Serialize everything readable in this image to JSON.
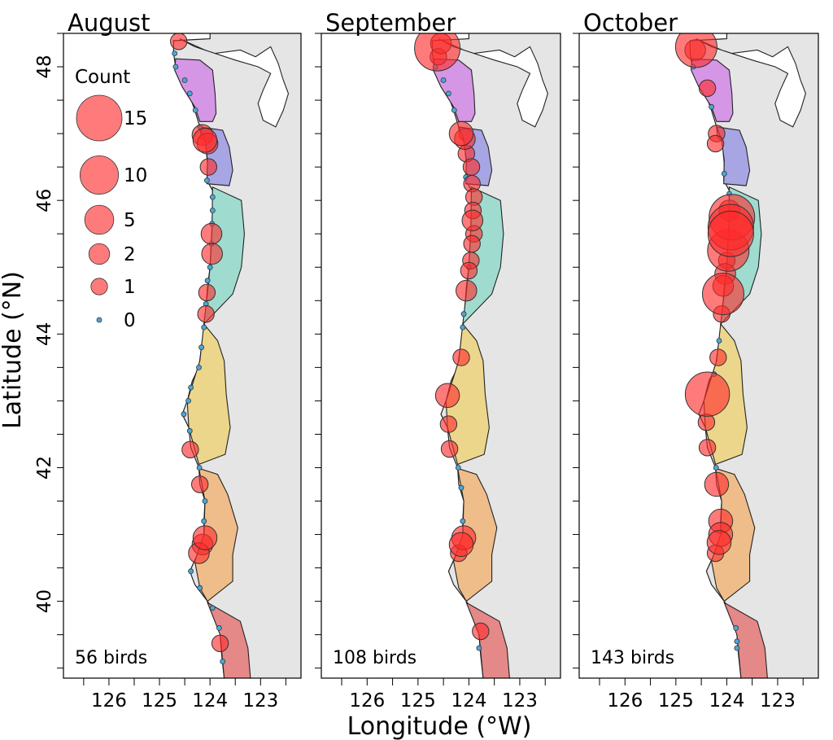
{
  "y_axis_label": "Latitude (°N)",
  "x_axis_label": "Longitude (°W)",
  "y_ticks": [
    "48",
    "46",
    "44",
    "42",
    "40"
  ],
  "x_ticks": [
    "126",
    "125",
    "124",
    "123"
  ],
  "legend": {
    "title": "Count",
    "entries": [
      {
        "label": "15",
        "count": 15
      },
      {
        "label": "10",
        "count": 10
      },
      {
        "label": "5",
        "count": 5
      },
      {
        "label": "2",
        "count": 2
      },
      {
        "label": "1",
        "count": 1
      },
      {
        "label": "0",
        "count": 0
      }
    ]
  },
  "colors": {
    "land": "#e5e5e5",
    "sea": "#ffffff",
    "count_fill": "#ff2a2a",
    "zero_fill": "#4aa8d8",
    "zones": [
      "#d596e5",
      "#a7a5e3",
      "#9fdccf",
      "#ecd68b",
      "#efbd8a",
      "#e58888"
    ]
  },
  "panels": [
    {
      "title": "August",
      "total": "56 birds",
      "points": [
        {
          "lat": 48.38,
          "lon": 124.62,
          "count": 1
        },
        {
          "lat": 46.98,
          "lon": 124.15,
          "count": 2
        },
        {
          "lat": 46.9,
          "lon": 124.1,
          "count": 3
        },
        {
          "lat": 46.85,
          "lon": 124.05,
          "count": 2
        },
        {
          "lat": 46.5,
          "lon": 124.03,
          "count": 1
        },
        {
          "lat": 45.5,
          "lon": 123.97,
          "count": 2
        },
        {
          "lat": 45.2,
          "lon": 123.96,
          "count": 2
        },
        {
          "lat": 44.62,
          "lon": 124.06,
          "count": 1
        },
        {
          "lat": 44.3,
          "lon": 124.08,
          "count": 1
        },
        {
          "lat": 42.27,
          "lon": 124.39,
          "count": 1
        },
        {
          "lat": 41.75,
          "lon": 124.2,
          "count": 1
        },
        {
          "lat": 40.95,
          "lon": 124.1,
          "count": 3
        },
        {
          "lat": 40.85,
          "lon": 124.15,
          "count": 2
        },
        {
          "lat": 40.72,
          "lon": 124.22,
          "count": 2
        },
        {
          "lat": 39.37,
          "lon": 123.8,
          "count": 1
        },
        {
          "lat": 48.2,
          "lon": 124.7,
          "count": 0
        },
        {
          "lat": 48.0,
          "lon": 124.68,
          "count": 0
        },
        {
          "lat": 47.8,
          "lon": 124.5,
          "count": 0
        },
        {
          "lat": 47.6,
          "lon": 124.4,
          "count": 0
        },
        {
          "lat": 47.35,
          "lon": 124.29,
          "count": 0
        },
        {
          "lat": 47.1,
          "lon": 124.2,
          "count": 0
        },
        {
          "lat": 46.3,
          "lon": 124.06,
          "count": 0
        },
        {
          "lat": 46.05,
          "lon": 123.95,
          "count": 0
        },
        {
          "lat": 45.85,
          "lon": 123.95,
          "count": 0
        },
        {
          "lat": 45.65,
          "lon": 123.96,
          "count": 0
        },
        {
          "lat": 45.35,
          "lon": 123.97,
          "count": 0
        },
        {
          "lat": 45.0,
          "lon": 124.0,
          "count": 0
        },
        {
          "lat": 44.8,
          "lon": 124.05,
          "count": 0
        },
        {
          "lat": 44.45,
          "lon": 124.08,
          "count": 0
        },
        {
          "lat": 44.1,
          "lon": 124.12,
          "count": 0
        },
        {
          "lat": 43.8,
          "lon": 124.17,
          "count": 0
        },
        {
          "lat": 43.5,
          "lon": 124.22,
          "count": 0
        },
        {
          "lat": 43.2,
          "lon": 124.38,
          "count": 0
        },
        {
          "lat": 43.0,
          "lon": 124.43,
          "count": 0
        },
        {
          "lat": 42.8,
          "lon": 124.52,
          "count": 0
        },
        {
          "lat": 42.55,
          "lon": 124.4,
          "count": 0
        },
        {
          "lat": 42.0,
          "lon": 124.21,
          "count": 0
        },
        {
          "lat": 41.5,
          "lon": 124.1,
          "count": 0
        },
        {
          "lat": 41.2,
          "lon": 124.12,
          "count": 0
        },
        {
          "lat": 40.45,
          "lon": 124.38,
          "count": 0
        },
        {
          "lat": 40.2,
          "lon": 124.2,
          "count": 0
        },
        {
          "lat": 39.9,
          "lon": 123.95,
          "count": 0
        },
        {
          "lat": 39.6,
          "lon": 123.82,
          "count": 0
        },
        {
          "lat": 39.1,
          "lon": 123.75,
          "count": 0
        }
      ]
    },
    {
      "title": "September",
      "total": "108 birds",
      "points": [
        {
          "lat": 48.28,
          "lon": 124.62,
          "count": 15
        },
        {
          "lat": 48.35,
          "lon": 124.55,
          "count": 2
        },
        {
          "lat": 48.15,
          "lon": 124.6,
          "count": 1
        },
        {
          "lat": 47.0,
          "lon": 124.15,
          "count": 3
        },
        {
          "lat": 46.92,
          "lon": 124.08,
          "count": 2
        },
        {
          "lat": 46.7,
          "lon": 124.05,
          "count": 1
        },
        {
          "lat": 46.5,
          "lon": 123.95,
          "count": 1
        },
        {
          "lat": 46.25,
          "lon": 123.94,
          "count": 1
        },
        {
          "lat": 46.05,
          "lon": 123.9,
          "count": 1
        },
        {
          "lat": 45.85,
          "lon": 123.92,
          "count": 1
        },
        {
          "lat": 45.7,
          "lon": 123.93,
          "count": 2
        },
        {
          "lat": 45.5,
          "lon": 123.9,
          "count": 1
        },
        {
          "lat": 45.35,
          "lon": 123.94,
          "count": 1
        },
        {
          "lat": 45.1,
          "lon": 123.96,
          "count": 1
        },
        {
          "lat": 44.95,
          "lon": 124.0,
          "count": 1
        },
        {
          "lat": 44.65,
          "lon": 124.05,
          "count": 2
        },
        {
          "lat": 43.65,
          "lon": 124.15,
          "count": 1
        },
        {
          "lat": 43.08,
          "lon": 124.42,
          "count": 3
        },
        {
          "lat": 42.65,
          "lon": 124.4,
          "count": 1
        },
        {
          "lat": 42.28,
          "lon": 124.38,
          "count": 1
        },
        {
          "lat": 40.95,
          "lon": 124.1,
          "count": 3
        },
        {
          "lat": 40.85,
          "lon": 124.15,
          "count": 3
        },
        {
          "lat": 40.72,
          "lon": 124.2,
          "count": 1
        },
        {
          "lat": 39.55,
          "lon": 123.77,
          "count": 1
        },
        {
          "lat": 48.0,
          "lon": 124.66,
          "count": 0
        },
        {
          "lat": 47.8,
          "lon": 124.5,
          "count": 0
        },
        {
          "lat": 47.6,
          "lon": 124.4,
          "count": 0
        },
        {
          "lat": 47.35,
          "lon": 124.29,
          "count": 0
        },
        {
          "lat": 46.35,
          "lon": 124.06,
          "count": 0
        },
        {
          "lat": 45.0,
          "lon": 124.0,
          "count": 0
        },
        {
          "lat": 44.3,
          "lon": 124.1,
          "count": 0
        },
        {
          "lat": 44.1,
          "lon": 124.12,
          "count": 0
        },
        {
          "lat": 42.0,
          "lon": 124.21,
          "count": 0
        },
        {
          "lat": 41.7,
          "lon": 124.15,
          "count": 0
        },
        {
          "lat": 41.2,
          "lon": 124.12,
          "count": 0
        },
        {
          "lat": 39.3,
          "lon": 123.8,
          "count": 0
        }
      ]
    },
    {
      "title": "October",
      "total": "143 birds",
      "points": [
        {
          "lat": 48.3,
          "lon": 124.6,
          "count": 12
        },
        {
          "lat": 48.25,
          "lon": 124.62,
          "count": 2
        },
        {
          "lat": 47.68,
          "lon": 124.38,
          "count": 1
        },
        {
          "lat": 47.0,
          "lon": 124.2,
          "count": 1
        },
        {
          "lat": 46.85,
          "lon": 124.22,
          "count": 1
        },
        {
          "lat": 45.75,
          "lon": 123.9,
          "count": 15
        },
        {
          "lat": 45.85,
          "lon": 123.95,
          "count": 2
        },
        {
          "lat": 45.6,
          "lon": 123.92,
          "count": 15
        },
        {
          "lat": 45.5,
          "lon": 123.92,
          "count": 15
        },
        {
          "lat": 45.25,
          "lon": 123.97,
          "count": 12
        },
        {
          "lat": 45.1,
          "lon": 124.0,
          "count": 1
        },
        {
          "lat": 44.9,
          "lon": 124.03,
          "count": 2
        },
        {
          "lat": 44.72,
          "lon": 124.07,
          "count": 2
        },
        {
          "lat": 44.6,
          "lon": 124.07,
          "count": 12
        },
        {
          "lat": 44.3,
          "lon": 124.1,
          "count": 1
        },
        {
          "lat": 43.65,
          "lon": 124.17,
          "count": 1
        },
        {
          "lat": 43.1,
          "lon": 124.38,
          "count": 14
        },
        {
          "lat": 42.68,
          "lon": 124.4,
          "count": 1
        },
        {
          "lat": 42.3,
          "lon": 124.38,
          "count": 1
        },
        {
          "lat": 41.75,
          "lon": 124.2,
          "count": 3
        },
        {
          "lat": 41.2,
          "lon": 124.12,
          "count": 3
        },
        {
          "lat": 41.0,
          "lon": 124.12,
          "count": 3
        },
        {
          "lat": 40.88,
          "lon": 124.15,
          "count": 3
        },
        {
          "lat": 40.72,
          "lon": 124.22,
          "count": 1
        },
        {
          "lat": 48.0,
          "lon": 124.66,
          "count": 0
        },
        {
          "lat": 47.4,
          "lon": 124.3,
          "count": 0
        },
        {
          "lat": 46.4,
          "lon": 124.05,
          "count": 0
        },
        {
          "lat": 46.1,
          "lon": 123.95,
          "count": 0
        },
        {
          "lat": 43.9,
          "lon": 124.15,
          "count": 0
        },
        {
          "lat": 43.4,
          "lon": 124.25,
          "count": 0
        },
        {
          "lat": 42.0,
          "lon": 124.21,
          "count": 0
        },
        {
          "lat": 39.6,
          "lon": 123.82,
          "count": 0
        },
        {
          "lat": 39.4,
          "lon": 123.8,
          "count": 0
        },
        {
          "lat": 39.3,
          "lon": 123.8,
          "count": 0
        }
      ]
    }
  ]
}
